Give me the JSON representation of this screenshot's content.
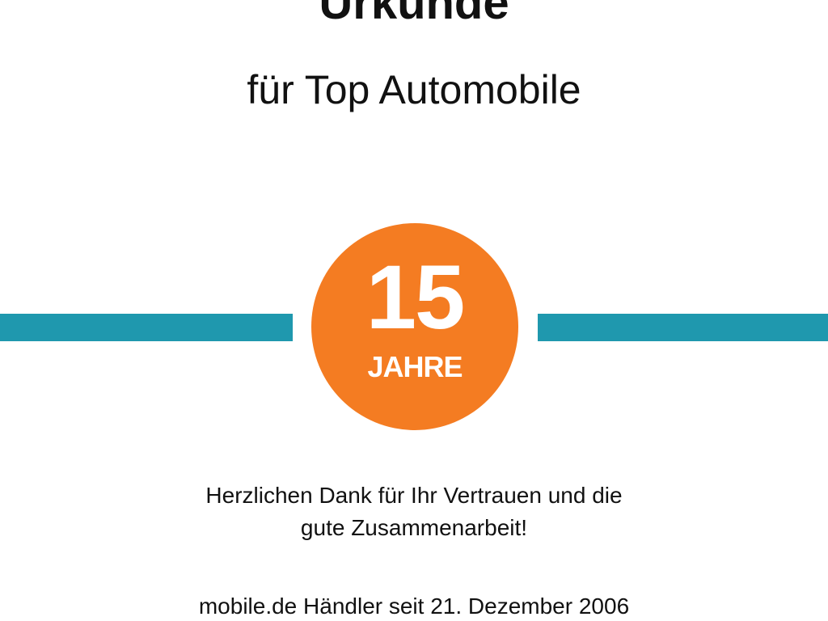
{
  "certificate": {
    "title": "Urkunde",
    "subtitle": "für Top Automobile",
    "badge": {
      "number": "15",
      "unit": "JAHRE"
    },
    "message_lines": [
      "Herzlichen Dank für Ihr Vertrauen und die",
      "gute Zusammenarbeit!"
    ],
    "dealer_since": "mobile.de Händler seit 21. Dezember 2006"
  },
  "colors": {
    "accent_bar": "#1f98ae",
    "badge": "#f47c22"
  }
}
